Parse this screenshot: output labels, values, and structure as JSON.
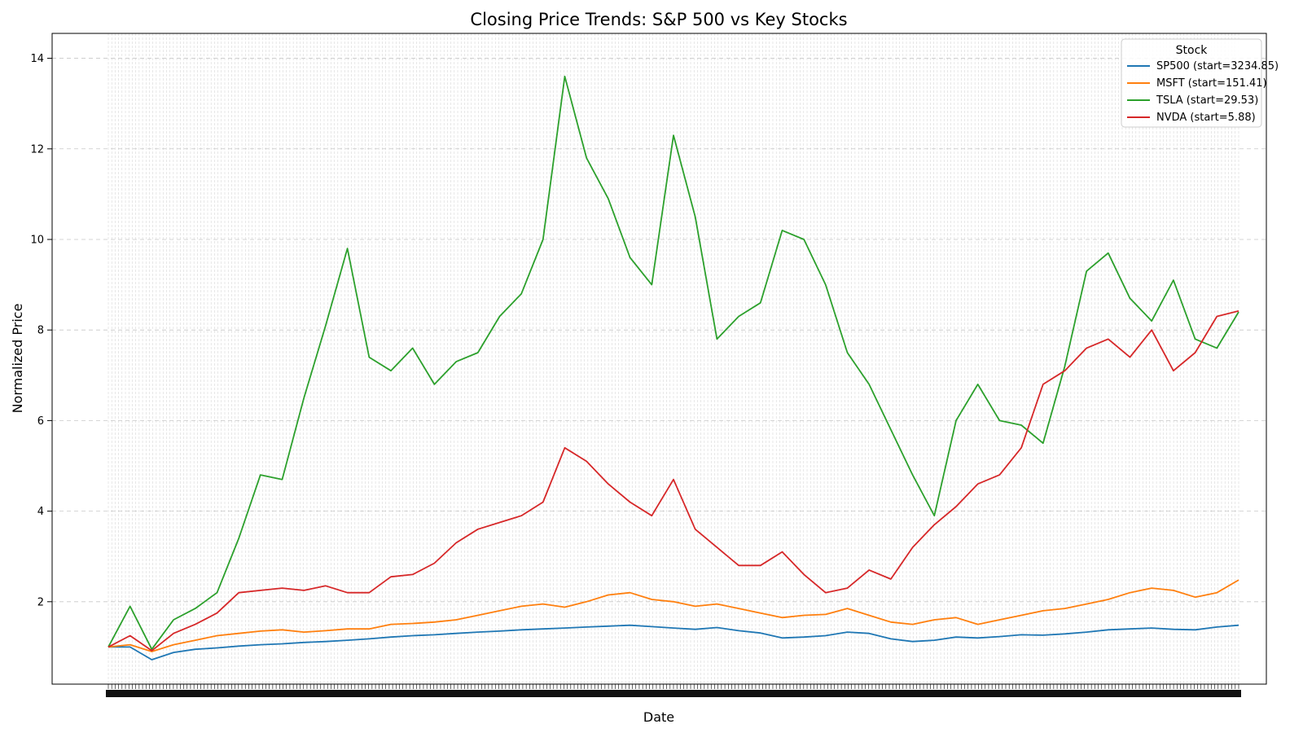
{
  "chart_data": {
    "type": "line",
    "title": "Closing Price Trends: S&P 500 vs Key Stocks",
    "xlabel": "Date",
    "ylabel": "Normalized Price",
    "ylim": [
      0.18,
      14.55
    ],
    "yticks": [
      2,
      4,
      6,
      8,
      10,
      12,
      14
    ],
    "grid": true,
    "legend": {
      "title": "Stock",
      "placement": "top-right"
    },
    "x_note_dense_ticks": true,
    "x": [
      0,
      25,
      50,
      75,
      100,
      125,
      150,
      175,
      200,
      225,
      250,
      275,
      300,
      325,
      350,
      375,
      400,
      425,
      450,
      475,
      500,
      525,
      550,
      575,
      600,
      625,
      650,
      675,
      700,
      725,
      750,
      775,
      800,
      825,
      850,
      875,
      900,
      925,
      950,
      975,
      1000,
      1025,
      1050,
      1075,
      1100,
      1125,
      1150,
      1175,
      1200,
      1225,
      1250,
      1275,
      1300
    ],
    "series": [
      {
        "name": "SP500 (start=3234.85)",
        "color": "#1f77b4",
        "values": [
          1.0,
          1.0,
          0.72,
          0.88,
          0.95,
          0.98,
          1.02,
          1.05,
          1.07,
          1.1,
          1.12,
          1.15,
          1.18,
          1.22,
          1.25,
          1.27,
          1.3,
          1.33,
          1.35,
          1.38,
          1.4,
          1.42,
          1.44,
          1.46,
          1.48,
          1.45,
          1.42,
          1.39,
          1.43,
          1.36,
          1.31,
          1.2,
          1.22,
          1.25,
          1.33,
          1.3,
          1.18,
          1.12,
          1.15,
          1.22,
          1.2,
          1.23,
          1.27,
          1.26,
          1.29,
          1.33,
          1.38,
          1.4,
          1.42,
          1.39,
          1.38,
          1.44,
          1.48
        ]
      },
      {
        "name": "MSFT (start=151.41)",
        "color": "#ff7f0e",
        "values": [
          1.0,
          1.05,
          0.9,
          1.05,
          1.15,
          1.25,
          1.3,
          1.35,
          1.38,
          1.33,
          1.36,
          1.4,
          1.4,
          1.5,
          1.52,
          1.55,
          1.6,
          1.7,
          1.8,
          1.9,
          1.95,
          1.88,
          2.0,
          2.15,
          2.2,
          2.05,
          2.0,
          1.9,
          1.95,
          1.85,
          1.75,
          1.65,
          1.7,
          1.72,
          1.85,
          1.7,
          1.55,
          1.5,
          1.6,
          1.65,
          1.5,
          1.6,
          1.7,
          1.8,
          1.85,
          1.95,
          2.05,
          2.2,
          2.3,
          2.25,
          2.1,
          2.2,
          2.48
        ]
      },
      {
        "name": "TSLA (start=29.53)",
        "color": "#2ca02c",
        "values": [
          1.0,
          1.9,
          0.95,
          1.6,
          1.85,
          2.2,
          3.4,
          4.8,
          4.7,
          6.5,
          8.1,
          9.8,
          7.4,
          7.1,
          7.6,
          6.8,
          7.3,
          7.5,
          8.3,
          8.8,
          10.0,
          13.6,
          11.8,
          10.9,
          9.6,
          9.0,
          12.3,
          10.5,
          7.8,
          8.3,
          8.6,
          10.2,
          10.0,
          9.0,
          7.5,
          6.8,
          5.8,
          4.8,
          3.9,
          6.0,
          6.8,
          6.0,
          5.9,
          5.5,
          7.2,
          9.3,
          9.7,
          8.7,
          8.2,
          9.1,
          7.8,
          7.6,
          8.4
        ]
      },
      {
        "name": "NVDA (start=5.88)",
        "color": "#d62728",
        "values": [
          1.0,
          1.25,
          0.92,
          1.3,
          1.5,
          1.75,
          2.2,
          2.25,
          2.3,
          2.25,
          2.35,
          2.2,
          2.2,
          2.55,
          2.6,
          2.85,
          3.3,
          3.6,
          3.75,
          3.9,
          4.2,
          5.4,
          5.1,
          4.6,
          4.2,
          3.9,
          4.7,
          3.6,
          3.2,
          2.8,
          2.8,
          3.1,
          2.6,
          2.2,
          2.3,
          2.7,
          2.5,
          3.2,
          3.7,
          4.1,
          4.6,
          4.8,
          5.4,
          6.8,
          7.1,
          7.6,
          7.8,
          7.4,
          8.0,
          7.1,
          7.5,
          8.3,
          8.42
        ]
      }
    ]
  }
}
